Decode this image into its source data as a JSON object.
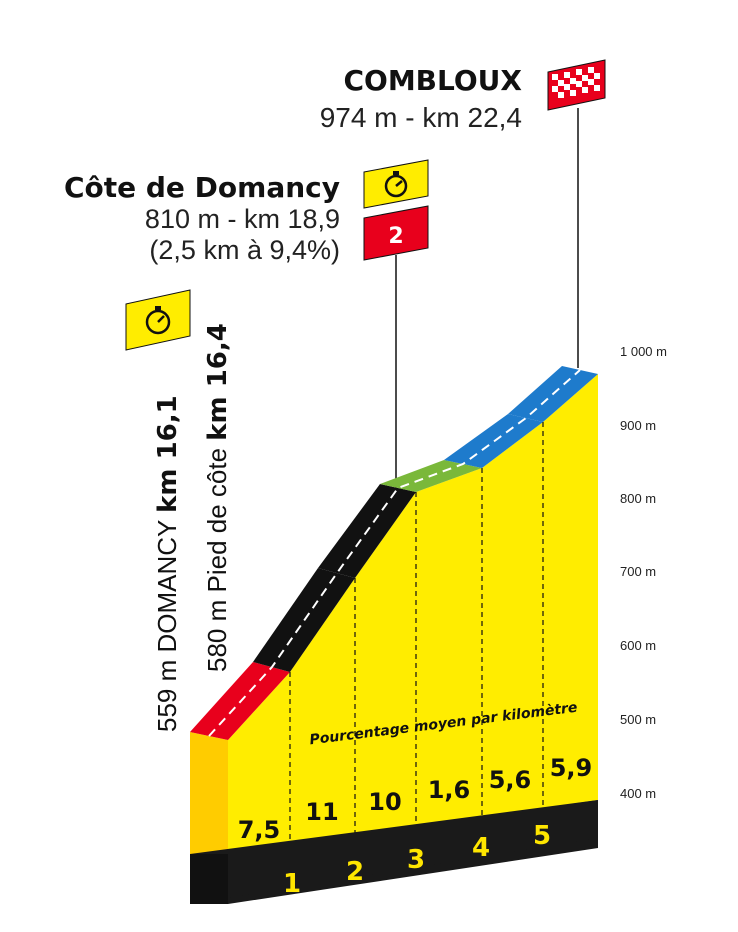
{
  "finish": {
    "name": "COMBLOUX",
    "detail": "974 m - km 22,4"
  },
  "climb": {
    "name": "Côte de Domancy",
    "detail": "810 m - km 18,9",
    "stats": "(2,5 km à 9,4%)",
    "category": "2",
    "category_color": "#e8001c"
  },
  "left_labels": {
    "domancy_prefix": "559 m DOMANCY ",
    "domancy_km": "km 16,1",
    "pied_prefix": "580 m Pied de côte ",
    "pied_km": "km 16,4"
  },
  "profile_note": "Pourcentage moyen par kilomètre",
  "colors": {
    "profile_fill": "#ffed00",
    "profile_side": "#ffcc00",
    "base": "#1a1a1a",
    "timing_badge": "#ffed00",
    "finish_flag": "#e8001c"
  },
  "icons": {
    "timing": "stopwatch-icon",
    "finish": "checkered-flag-icon"
  },
  "chart_data": {
    "type": "area",
    "yticks": [
      "400 m",
      "500 m",
      "600 m",
      "700 m",
      "800 m",
      "900 m",
      "1 000 m"
    ],
    "ylim": [
      400,
      1000
    ],
    "km_markers": [
      "1",
      "2",
      "3",
      "4",
      "5"
    ],
    "segments": [
      {
        "percent": "7,5",
        "color": "#e8001c"
      },
      {
        "percent": "11",
        "color": "#111111"
      },
      {
        "percent": "10",
        "color": "#111111"
      },
      {
        "percent": "1,6",
        "color": "#7ab83a"
      },
      {
        "percent": "5,6",
        "color": "#1e7bcc"
      },
      {
        "percent": "5,9",
        "color": "#1e7bcc"
      }
    ]
  }
}
